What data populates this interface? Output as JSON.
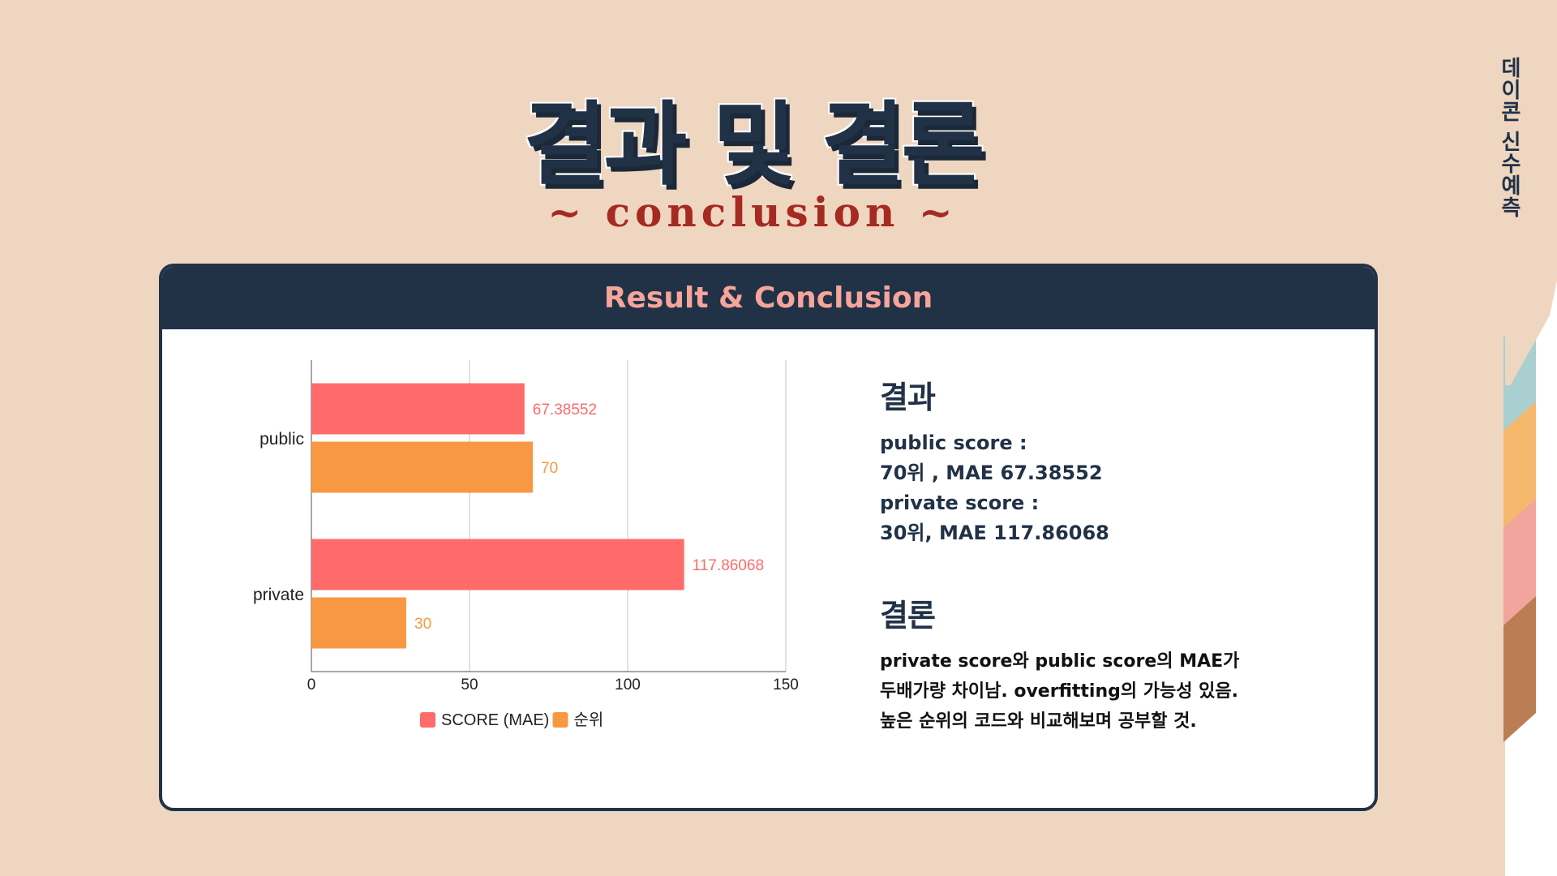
{
  "page": {
    "title": "결과 및 결론",
    "subtitle": "~ conclusion ~",
    "side_label": "데이콘 신수예측",
    "tab_colors": [
      "#a9cfd0",
      "#f5b86c",
      "#f2a59d",
      "#bb7d54"
    ]
  },
  "card": {
    "header": "Result & Conclusion",
    "header_color": "#f7a49a",
    "result": {
      "heading": "결과",
      "public_label": "public score :",
      "public_value": "70위 , MAE 67.38552",
      "private_label": "private score :",
      "private_value": "30위, MAE 117.86068"
    },
    "conclusion": {
      "heading": "결론",
      "lines": [
        "private score와 public score의 MAE가",
        "두배가량 차이남. overfitting의 가능성 있음.",
        "높은 순위의 코드와 비교해보며 공부할 것."
      ]
    }
  },
  "chart_data": {
    "type": "bar",
    "orientation": "horizontal",
    "categories": [
      "public",
      "private"
    ],
    "series": [
      {
        "name": "SCORE (MAE)",
        "values": [
          67.38552,
          117.86068
        ],
        "labels": [
          "67.38552",
          "117.86068"
        ],
        "color": "#ff6b6b"
      },
      {
        "name": "순위",
        "values": [
          70,
          30
        ],
        "labels": [
          "70",
          "30"
        ],
        "color": "#f99843"
      }
    ],
    "xlim": [
      0,
      150
    ],
    "xticks": [
      0,
      50,
      100,
      150
    ],
    "grid": true,
    "legend": "bottom"
  }
}
